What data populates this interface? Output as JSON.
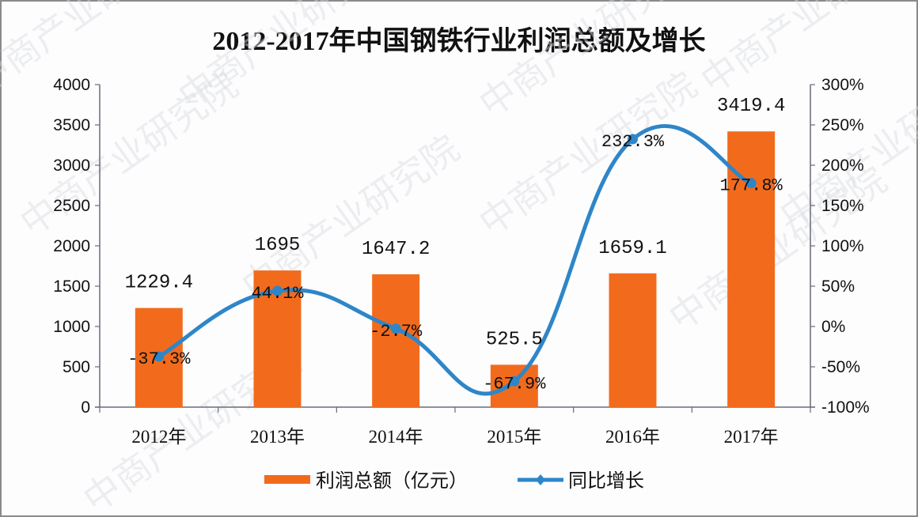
{
  "chart_data": {
    "type": "bar+line",
    "title": "2012-2017年中国钢铁行业利润总额及增长",
    "categories": [
      "2012年",
      "2013年",
      "2014年",
      "2015年",
      "2016年",
      "2017年"
    ],
    "series": [
      {
        "name": "利润总额（亿元）",
        "type": "bar",
        "axis": "left",
        "color": "#f26b1d",
        "values": [
          1229.4,
          1695,
          1647.2,
          525.5,
          1659.1,
          3419.4
        ],
        "labels": [
          "1229.4",
          "1695",
          "1647.2",
          "525.5",
          "1659.1",
          "3419.4"
        ]
      },
      {
        "name": "同比增长",
        "type": "line",
        "axis": "right",
        "color": "#2e86c8",
        "smooth": true,
        "values": [
          -37.3,
          44.1,
          -2.7,
          -67.9,
          232.3,
          177.8
        ],
        "labels": [
          "-37.3%",
          "44.1%",
          "-2.7%",
          "-67.9%",
          "232.3%",
          "177.8%"
        ]
      }
    ],
    "left_axis": {
      "ylim": [
        0,
        4000
      ],
      "ticks": [
        "0",
        "500",
        "1000",
        "1500",
        "2000",
        "2500",
        "3000",
        "3500",
        "4000"
      ]
    },
    "right_axis": {
      "ylim": [
        -100,
        300
      ],
      "ticks": [
        "-100%",
        "-50%",
        "0%",
        "50%",
        "100%",
        "150%",
        "200%",
        "250%",
        "300%"
      ]
    },
    "grid": false,
    "legend_position": "bottom"
  },
  "legend": {
    "bar_label": "利润总额（亿元）",
    "line_label": "同比增长"
  },
  "watermark": "中商产业研究院"
}
